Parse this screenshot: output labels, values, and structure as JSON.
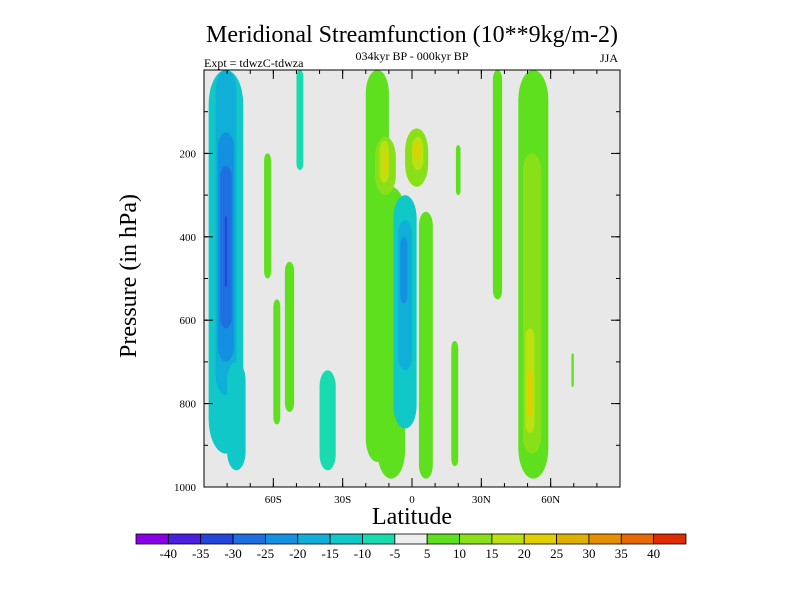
{
  "chart_data": {
    "type": "heatmap",
    "title": "Meridional Streamfunction (10**9kg/m-2)",
    "subtitle": "034kyr BP - 000kyr BP",
    "left_label": "Expt = tdwzC-tdwza",
    "right_label": "JJA",
    "xlabel": "Latitude",
    "ylabel": "Pressure (in hPa)",
    "xlim": [
      -90,
      90
    ],
    "ylim": [
      1000,
      0
    ],
    "xticks": [
      {
        "value": -60,
        "label": "60S"
      },
      {
        "value": -30,
        "label": "30S"
      },
      {
        "value": 0,
        "label": "0"
      },
      {
        "value": 30,
        "label": "30N"
      },
      {
        "value": 60,
        "label": "60N"
      }
    ],
    "yticks": [
      {
        "value": 200,
        "label": "200"
      },
      {
        "value": 400,
        "label": "400"
      },
      {
        "value": 600,
        "label": "600"
      },
      {
        "value": 800,
        "label": "800"
      },
      {
        "value": 1000,
        "label": "1000"
      }
    ],
    "levels": [
      "-40",
      "-35",
      "-30",
      "-25",
      "-20",
      "-15",
      "-10",
      "-5",
      "5",
      "10",
      "15",
      "20",
      "25",
      "30",
      "35",
      "40"
    ],
    "colors": [
      "#8a00e6",
      "#4b1ee0",
      "#2346dc",
      "#1f6fe0",
      "#1490e0",
      "#10afd8",
      "#10c8c8",
      "#18dcb0",
      "#eeeeee",
      "#5ee01e",
      "#8ae018",
      "#bce010",
      "#e0d000",
      "#e0b000",
      "#e69000",
      "#e66a00",
      "#e02a00"
    ],
    "background": "#e8e8e8",
    "cells": [
      {
        "x": [
          -88,
          -73
        ],
        "p": [
          0,
          920
        ],
        "v": -12
      },
      {
        "x": [
          -85,
          -76
        ],
        "p": [
          0,
          780
        ],
        "v": -17
      },
      {
        "x": [
          -84,
          -77
        ],
        "p": [
          150,
          700
        ],
        "v": -22
      },
      {
        "x": [
          -83,
          -78
        ],
        "p": [
          230,
          620
        ],
        "v": -27
      },
      {
        "x": [
          -81,
          -80
        ],
        "p": [
          350,
          520
        ],
        "v": -32
      },
      {
        "x": [
          -80,
          -72
        ],
        "p": [
          700,
          960
        ],
        "v": -12
      },
      {
        "x": [
          -64,
          -61
        ],
        "p": [
          200,
          500
        ],
        "v": 7
      },
      {
        "x": [
          -60,
          -57
        ],
        "p": [
          550,
          850
        ],
        "v": 7
      },
      {
        "x": [
          -55,
          -51
        ],
        "p": [
          460,
          820
        ],
        "v": 7
      },
      {
        "x": [
          -50,
          -47
        ],
        "p": [
          0,
          240
        ],
        "v": -7
      },
      {
        "x": [
          -40,
          -33
        ],
        "p": [
          720,
          960
        ],
        "v": -7
      },
      {
        "x": [
          -20,
          -10
        ],
        "p": [
          0,
          940
        ],
        "v": 7
      },
      {
        "x": [
          -15,
          -3
        ],
        "p": [
          280,
          980
        ],
        "v": 7
      },
      {
        "x": [
          -16,
          -7
        ],
        "p": [
          160,
          300
        ],
        "v": 12
      },
      {
        "x": [
          -14,
          -10
        ],
        "p": [
          170,
          270
        ],
        "v": 17
      },
      {
        "x": [
          -12,
          -11
        ],
        "p": [
          200,
          250
        ],
        "v": 22
      },
      {
        "x": [
          -8,
          2
        ],
        "p": [
          300,
          860
        ],
        "v": -12
      },
      {
        "x": [
          -6,
          0
        ],
        "p": [
          360,
          720
        ],
        "v": -17
      },
      {
        "x": [
          -5,
          -2
        ],
        "p": [
          400,
          560
        ],
        "v": -22
      },
      {
        "x": [
          -3,
          7
        ],
        "p": [
          140,
          280
        ],
        "v": 12
      },
      {
        "x": [
          0,
          5
        ],
        "p": [
          160,
          240
        ],
        "v": 17
      },
      {
        "x": [
          1,
          3
        ],
        "p": [
          175,
          215
        ],
        "v": 22
      },
      {
        "x": [
          3,
          9
        ],
        "p": [
          340,
          980
        ],
        "v": 7
      },
      {
        "x": [
          17,
          20
        ],
        "p": [
          650,
          950
        ],
        "v": 7
      },
      {
        "x": [
          19,
          21
        ],
        "p": [
          180,
          300
        ],
        "v": 7
      },
      {
        "x": [
          35,
          39
        ],
        "p": [
          0,
          550
        ],
        "v": 7
      },
      {
        "x": [
          46,
          59
        ],
        "p": [
          0,
          980
        ],
        "v": 7
      },
      {
        "x": [
          48,
          56
        ],
        "p": [
          200,
          920
        ],
        "v": 12
      },
      {
        "x": [
          49,
          53
        ],
        "p": [
          620,
          870
        ],
        "v": 17
      },
      {
        "x": [
          50,
          52
        ],
        "p": [
          720,
          830
        ],
        "v": 22
      },
      {
        "x": [
          69,
          70
        ],
        "p": [
          680,
          760
        ],
        "v": 7
      }
    ]
  }
}
